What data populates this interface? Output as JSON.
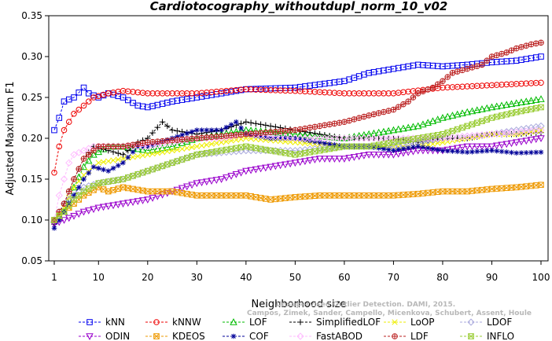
{
  "chart_data": {
    "type": "line",
    "title": "Cardiotocography_withoutdupl_norm_10_v02",
    "xlabel": "Neighborhood size",
    "ylabel": "Adjusted Maximum F1",
    "xlim": [
      0,
      100
    ],
    "ylim": [
      0.05,
      0.35
    ],
    "xticks": [
      1,
      10,
      20,
      30,
      40,
      50,
      60,
      70,
      80,
      90,
      100
    ],
    "yticks": [
      0.05,
      0.1,
      0.15,
      0.2,
      0.25,
      0.3,
      0.35
    ],
    "ytick_labels": [
      "0.05",
      "0.10",
      "0.15",
      "0.20",
      "0.25",
      "0.30",
      "0.35"
    ],
    "grid": false,
    "legend_position": "bottom",
    "watermark": [
      "Campos, Zimek, Sander, Campello, Micenkova, Schubert, Assent, Houle",
      "Unsupervised Outlier Detection. DAMI, 2015."
    ],
    "series": [
      {
        "name": "kNN",
        "color": "#0000ee",
        "marker": "square",
        "points": [
          [
            1,
            0.21
          ],
          [
            2,
            0.225
          ],
          [
            3,
            0.245
          ],
          [
            5,
            0.25
          ],
          [
            7,
            0.262
          ],
          [
            8,
            0.255
          ],
          [
            10,
            0.25
          ],
          [
            12,
            0.255
          ],
          [
            15,
            0.25
          ],
          [
            18,
            0.24
          ],
          [
            20,
            0.238
          ],
          [
            25,
            0.245
          ],
          [
            30,
            0.25
          ],
          [
            35,
            0.255
          ],
          [
            40,
            0.26
          ],
          [
            50,
            0.262
          ],
          [
            60,
            0.27
          ],
          [
            65,
            0.28
          ],
          [
            70,
            0.285
          ],
          [
            75,
            0.29
          ],
          [
            80,
            0.288
          ],
          [
            85,
            0.29
          ],
          [
            90,
            0.293
          ],
          [
            95,
            0.295
          ],
          [
            100,
            0.3
          ]
        ]
      },
      {
        "name": "kNNW",
        "color": "#ee0000",
        "marker": "circle",
        "points": [
          [
            1,
            0.158
          ],
          [
            2,
            0.19
          ],
          [
            3,
            0.21
          ],
          [
            5,
            0.23
          ],
          [
            7,
            0.24
          ],
          [
            9,
            0.25
          ],
          [
            12,
            0.255
          ],
          [
            15,
            0.258
          ],
          [
            20,
            0.255
          ],
          [
            30,
            0.255
          ],
          [
            40,
            0.26
          ],
          [
            50,
            0.258
          ],
          [
            60,
            0.255
          ],
          [
            70,
            0.255
          ],
          [
            80,
            0.262
          ],
          [
            90,
            0.265
          ],
          [
            100,
            0.268
          ]
        ]
      },
      {
        "name": "LOF",
        "color": "#00bb00",
        "marker": "triangle-up",
        "points": [
          [
            1,
            0.1
          ],
          [
            3,
            0.11
          ],
          [
            5,
            0.14
          ],
          [
            7,
            0.165
          ],
          [
            9,
            0.18
          ],
          [
            12,
            0.19
          ],
          [
            15,
            0.19
          ],
          [
            20,
            0.185
          ],
          [
            25,
            0.19
          ],
          [
            30,
            0.2
          ],
          [
            35,
            0.205
          ],
          [
            40,
            0.21
          ],
          [
            50,
            0.205
          ],
          [
            60,
            0.2
          ],
          [
            65,
            0.205
          ],
          [
            70,
            0.21
          ],
          [
            75,
            0.215
          ],
          [
            80,
            0.225
          ],
          [
            85,
            0.232
          ],
          [
            90,
            0.238
          ],
          [
            95,
            0.243
          ],
          [
            100,
            0.248
          ]
        ]
      },
      {
        "name": "SimplifiedLOF",
        "color": "#000000",
        "marker": "plus",
        "points": [
          [
            1,
            0.095
          ],
          [
            3,
            0.12
          ],
          [
            5,
            0.15
          ],
          [
            7,
            0.175
          ],
          [
            9,
            0.19
          ],
          [
            12,
            0.185
          ],
          [
            15,
            0.18
          ],
          [
            18,
            0.195
          ],
          [
            20,
            0.2
          ],
          [
            23,
            0.22
          ],
          [
            25,
            0.21
          ],
          [
            30,
            0.205
          ],
          [
            35,
            0.21
          ],
          [
            40,
            0.22
          ],
          [
            45,
            0.215
          ],
          [
            50,
            0.21
          ],
          [
            55,
            0.205
          ],
          [
            60,
            0.2
          ],
          [
            65,
            0.2
          ],
          [
            70,
            0.2
          ],
          [
            75,
            0.195
          ],
          [
            80,
            0.2
          ],
          [
            85,
            0.2
          ],
          [
            90,
            0.205
          ],
          [
            95,
            0.205
          ],
          [
            100,
            0.207
          ]
        ]
      },
      {
        "name": "LoOP",
        "color": "#eeee00",
        "marker": "cross",
        "points": [
          [
            1,
            0.1
          ],
          [
            3,
            0.115
          ],
          [
            5,
            0.14
          ],
          [
            7,
            0.155
          ],
          [
            10,
            0.17
          ],
          [
            15,
            0.175
          ],
          [
            20,
            0.18
          ],
          [
            25,
            0.185
          ],
          [
            30,
            0.19
          ],
          [
            35,
            0.195
          ],
          [
            40,
            0.2
          ],
          [
            50,
            0.195
          ],
          [
            60,
            0.19
          ],
          [
            70,
            0.19
          ],
          [
            75,
            0.19
          ],
          [
            80,
            0.195
          ],
          [
            85,
            0.2
          ],
          [
            90,
            0.205
          ],
          [
            95,
            0.205
          ],
          [
            100,
            0.21
          ]
        ]
      },
      {
        "name": "LDOF",
        "color": "#aaaadd",
        "marker": "diamond",
        "points": [
          [
            1,
            0.1
          ],
          [
            3,
            0.12
          ],
          [
            5,
            0.13
          ],
          [
            7,
            0.14
          ],
          [
            10,
            0.145
          ],
          [
            15,
            0.15
          ],
          [
            20,
            0.16
          ],
          [
            25,
            0.17
          ],
          [
            30,
            0.18
          ],
          [
            40,
            0.185
          ],
          [
            50,
            0.185
          ],
          [
            60,
            0.19
          ],
          [
            70,
            0.19
          ],
          [
            80,
            0.2
          ],
          [
            90,
            0.205
          ],
          [
            100,
            0.215
          ]
        ]
      },
      {
        "name": "ODIN",
        "color": "#9900cc",
        "marker": "triangle-down",
        "points": [
          [
            1,
            0.095
          ],
          [
            3,
            0.1
          ],
          [
            5,
            0.105
          ],
          [
            7,
            0.11
          ],
          [
            10,
            0.115
          ],
          [
            15,
            0.12
          ],
          [
            20,
            0.125
          ],
          [
            25,
            0.135
          ],
          [
            30,
            0.145
          ],
          [
            35,
            0.15
          ],
          [
            40,
            0.16
          ],
          [
            45,
            0.165
          ],
          [
            50,
            0.17
          ],
          [
            55,
            0.175
          ],
          [
            60,
            0.175
          ],
          [
            65,
            0.18
          ],
          [
            70,
            0.18
          ],
          [
            75,
            0.185
          ],
          [
            80,
            0.185
          ],
          [
            85,
            0.19
          ],
          [
            90,
            0.19
          ],
          [
            95,
            0.195
          ],
          [
            100,
            0.2
          ]
        ]
      },
      {
        "name": "KDEOS",
        "color": "#ee9900",
        "marker": "square-x",
        "points": [
          [
            1,
            0.1
          ],
          [
            3,
            0.11
          ],
          [
            5,
            0.12
          ],
          [
            7,
            0.13
          ],
          [
            10,
            0.14
          ],
          [
            12,
            0.135
          ],
          [
            15,
            0.14
          ],
          [
            20,
            0.135
          ],
          [
            25,
            0.135
          ],
          [
            30,
            0.13
          ],
          [
            40,
            0.13
          ],
          [
            45,
            0.125
          ],
          [
            50,
            0.128
          ],
          [
            55,
            0.13
          ],
          [
            60,
            0.13
          ],
          [
            65,
            0.13
          ],
          [
            70,
            0.13
          ],
          [
            75,
            0.132
          ],
          [
            80,
            0.135
          ],
          [
            85,
            0.135
          ],
          [
            90,
            0.138
          ],
          [
            95,
            0.14
          ],
          [
            100,
            0.143
          ]
        ]
      },
      {
        "name": "COF",
        "color": "#000099",
        "marker": "asterisk",
        "points": [
          [
            1,
            0.09
          ],
          [
            3,
            0.11
          ],
          [
            5,
            0.13
          ],
          [
            7,
            0.15
          ],
          [
            9,
            0.165
          ],
          [
            12,
            0.16
          ],
          [
            15,
            0.17
          ],
          [
            18,
            0.19
          ],
          [
            20,
            0.19
          ],
          [
            25,
            0.2
          ],
          [
            30,
            0.21
          ],
          [
            35,
            0.21
          ],
          [
            38,
            0.22
          ],
          [
            40,
            0.205
          ],
          [
            45,
            0.2
          ],
          [
            50,
            0.2
          ],
          [
            55,
            0.195
          ],
          [
            60,
            0.19
          ],
          [
            65,
            0.19
          ],
          [
            70,
            0.185
          ],
          [
            75,
            0.19
          ],
          [
            80,
            0.185
          ],
          [
            85,
            0.183
          ],
          [
            90,
            0.185
          ],
          [
            95,
            0.182
          ],
          [
            100,
            0.183
          ]
        ]
      },
      {
        "name": "FastABOD",
        "color": "#ffbbff",
        "marker": "diamond",
        "points": [
          [
            1,
            0.1
          ],
          [
            2,
            0.13
          ],
          [
            3,
            0.15
          ],
          [
            4,
            0.17
          ],
          [
            5,
            0.18
          ],
          [
            7,
            0.185
          ],
          [
            9,
            0.19
          ],
          [
            12,
            0.19
          ],
          [
            15,
            0.19
          ],
          [
            20,
            0.19
          ],
          [
            25,
            0.195
          ],
          [
            30,
            0.2
          ],
          [
            35,
            0.2
          ],
          [
            40,
            0.205
          ],
          [
            50,
            0.2
          ],
          [
            60,
            0.2
          ],
          [
            70,
            0.2
          ],
          [
            80,
            0.2
          ],
          [
            90,
            0.205
          ],
          [
            100,
            0.21
          ]
        ]
      },
      {
        "name": "LDF",
        "color": "#bb2222",
        "marker": "circle-plus",
        "points": [
          [
            1,
            0.1
          ],
          [
            3,
            0.12
          ],
          [
            5,
            0.15
          ],
          [
            7,
            0.175
          ],
          [
            10,
            0.19
          ],
          [
            15,
            0.19
          ],
          [
            20,
            0.195
          ],
          [
            30,
            0.2
          ],
          [
            40,
            0.205
          ],
          [
            50,
            0.21
          ],
          [
            55,
            0.215
          ],
          [
            60,
            0.22
          ],
          [
            65,
            0.228
          ],
          [
            70,
            0.235
          ],
          [
            73,
            0.245
          ],
          [
            75,
            0.255
          ],
          [
            78,
            0.262
          ],
          [
            80,
            0.27
          ],
          [
            82,
            0.28
          ],
          [
            85,
            0.285
          ],
          [
            88,
            0.29
          ],
          [
            90,
            0.3
          ],
          [
            93,
            0.305
          ],
          [
            95,
            0.31
          ],
          [
            98,
            0.315
          ],
          [
            100,
            0.317
          ]
        ]
      },
      {
        "name": "INFLO",
        "color": "#99cc33",
        "marker": "square-x",
        "points": [
          [
            1,
            0.1
          ],
          [
            3,
            0.11
          ],
          [
            5,
            0.125
          ],
          [
            7,
            0.135
          ],
          [
            10,
            0.145
          ],
          [
            15,
            0.15
          ],
          [
            20,
            0.16
          ],
          [
            25,
            0.17
          ],
          [
            30,
            0.18
          ],
          [
            35,
            0.185
          ],
          [
            40,
            0.19
          ],
          [
            45,
            0.185
          ],
          [
            50,
            0.18
          ],
          [
            55,
            0.185
          ],
          [
            60,
            0.19
          ],
          [
            65,
            0.19
          ],
          [
            70,
            0.195
          ],
          [
            75,
            0.2
          ],
          [
            80,
            0.205
          ],
          [
            85,
            0.215
          ],
          [
            90,
            0.225
          ],
          [
            95,
            0.232
          ],
          [
            100,
            0.238
          ]
        ]
      }
    ]
  }
}
